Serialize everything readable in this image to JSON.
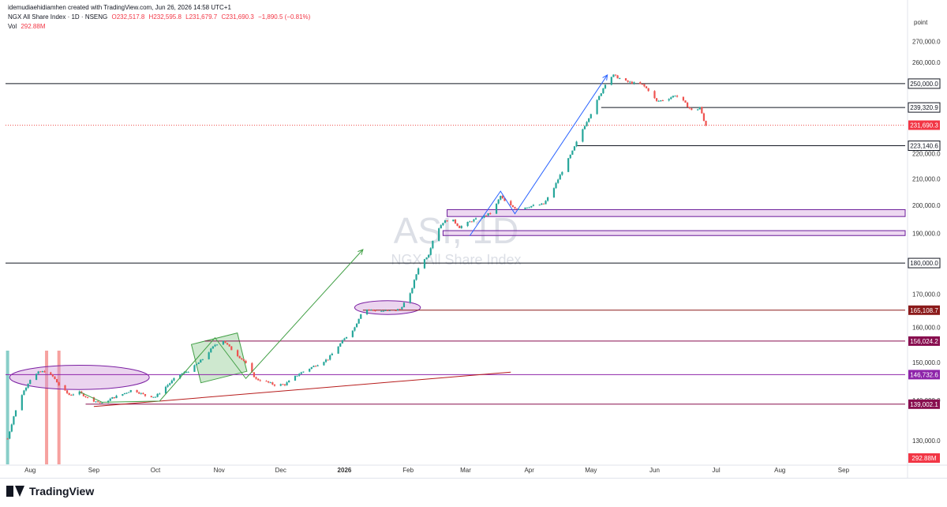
{
  "header": {
    "credit": "idemudiaehidiamhen created with TradingView.com, Jun 26, 2026 14:58 UTC+1",
    "symbol": "NGX All Share Index · 1D · NSENG",
    "open": "O232,517.8",
    "high": "H232,595.8",
    "low": "L231,679.7",
    "close": "C231,690.3",
    "change": "−1,890.5 (−0.81%)",
    "vol_label": "Vol",
    "vol_value": "292.88M"
  },
  "watermark": {
    "ticker": "ASI, 1D",
    "name": "NGX All Share Index"
  },
  "axis_unit": "point",
  "footer": {
    "brand": "TradingView"
  },
  "colors": {
    "up": "#26a69a",
    "down": "#ef5350",
    "trend_arrow_green": "#43a047",
    "trend_arrow_blue": "#2962ff",
    "support": "#b71c1c",
    "purple": "#7b1fa2"
  },
  "chart_data": {
    "type": "candlestick",
    "x_ticks": [
      "Aug",
      "Sep",
      "Oct",
      "Nov",
      "Dec",
      "2026",
      "Feb",
      "Mar",
      "Apr",
      "May",
      "Jun",
      "Jul",
      "Aug",
      "Sep"
    ],
    "y_ticks": [
      "270,000.0",
      "260,000.0",
      "250,000.0",
      "220,000.0",
      "210,000.0",
      "200,000.0",
      "190,000.0",
      "180,000.0",
      "170,000.0",
      "160,000.0",
      "150,000.0",
      "140,000.0",
      "130,000.0"
    ],
    "ylim": [
      124500,
      275000
    ],
    "scale": "log",
    "x_range": [
      "2025-07-20",
      "2026-10-01"
    ],
    "last_price": {
      "value": 231690.3,
      "label": "231,690.3"
    },
    "volume_label": "292.88M",
    "price_path": [
      [
        "2025-07-21",
        130500
      ],
      [
        "2025-07-24",
        136000
      ],
      [
        "2025-07-28",
        141500
      ],
      [
        "2025-08-01",
        145500
      ],
      [
        "2025-08-05",
        147300
      ],
      [
        "2025-08-08",
        147600
      ],
      [
        "2025-08-12",
        146200
      ],
      [
        "2025-08-16",
        143200
      ],
      [
        "2025-08-20",
        141400
      ],
      [
        "2025-08-25",
        142000
      ],
      [
        "2025-08-30",
        140300
      ],
      [
        "2025-09-05",
        139200
      ],
      [
        "2025-09-10",
        140600
      ],
      [
        "2025-09-15",
        141600
      ],
      [
        "2025-09-20",
        142800
      ],
      [
        "2025-09-26",
        141200
      ],
      [
        "2025-10-01",
        140900
      ],
      [
        "2025-10-06",
        143500
      ],
      [
        "2025-10-12",
        146500
      ],
      [
        "2025-10-18",
        148000
      ],
      [
        "2025-10-24",
        151000
      ],
      [
        "2025-10-30",
        155000
      ],
      [
        "2025-11-03",
        156200
      ],
      [
        "2025-11-08",
        153000
      ],
      [
        "2025-11-13",
        150500
      ],
      [
        "2025-11-16",
        147900
      ],
      [
        "2025-11-19",
        145500
      ],
      [
        "2025-11-23",
        145000
      ],
      [
        "2025-11-28",
        144000
      ],
      [
        "2025-12-03",
        144100
      ],
      [
        "2025-12-10",
        147000
      ],
      [
        "2025-12-17",
        149000
      ],
      [
        "2025-12-24",
        151000
      ],
      [
        "2025-12-31",
        156000
      ],
      [
        "2026-01-06",
        160000
      ],
      [
        "2026-01-10",
        165500
      ],
      [
        "2026-01-17",
        164900
      ],
      [
        "2026-01-24",
        164900
      ],
      [
        "2026-01-28",
        165400
      ],
      [
        "2026-02-02",
        170000
      ],
      [
        "2026-02-06",
        178500
      ],
      [
        "2026-02-11",
        183000
      ],
      [
        "2026-02-14",
        190000
      ],
      [
        "2026-02-18",
        194000
      ],
      [
        "2026-02-22",
        195300
      ],
      [
        "2026-02-26",
        192200
      ],
      [
        "2026-03-04",
        194500
      ],
      [
        "2026-03-08",
        195500
      ],
      [
        "2026-03-14",
        197500
      ],
      [
        "2026-03-18",
        203500
      ],
      [
        "2026-03-21",
        200500
      ],
      [
        "2026-03-26",
        198800
      ],
      [
        "2026-04-02",
        199800
      ],
      [
        "2026-04-08",
        200500
      ],
      [
        "2026-04-12",
        205000
      ],
      [
        "2026-04-17",
        213000
      ],
      [
        "2026-04-22",
        220800
      ],
      [
        "2026-04-27",
        230000
      ],
      [
        "2026-05-02",
        238500
      ],
      [
        "2026-05-06",
        246000
      ],
      [
        "2026-05-09",
        252000
      ],
      [
        "2026-05-12",
        253800
      ],
      [
        "2026-05-18",
        251000
      ],
      [
        "2026-05-22",
        250200
      ],
      [
        "2026-05-26",
        249500
      ],
      [
        "2026-05-29",
        247000
      ],
      [
        "2026-06-02",
        242000
      ],
      [
        "2026-06-07",
        243000
      ],
      [
        "2026-06-11",
        244800
      ],
      [
        "2026-06-15",
        242000
      ],
      [
        "2026-06-20",
        237000
      ],
      [
        "2026-06-23",
        239500
      ],
      [
        "2026-06-25",
        233500
      ],
      [
        "2026-06-26",
        231690
      ]
    ],
    "horizontal_levels": [
      {
        "value": 250000,
        "label": "250,000.0",
        "start": "2025-07-20",
        "color": "#131722"
      },
      {
        "value": 239320.9,
        "label": "239,320.9",
        "start": "2026-05-06",
        "color": "#131722"
      },
      {
        "value": 223140.6,
        "label": "223,140.6",
        "start": "2026-04-24",
        "color": "#131722"
      },
      {
        "value": 180000,
        "label": "180,000.0",
        "start": "2025-07-20",
        "color": "#131722"
      },
      {
        "value": 165108.7,
        "label": "165,108.7",
        "start": "2026-01-10",
        "color": "#8b1a1a"
      },
      {
        "value": 156024.2,
        "label": "156,024.2",
        "start": "2025-10-25",
        "color": "#880e4f"
      },
      {
        "value": 146732.6,
        "label": "146,732.6",
        "start": "2025-07-20",
        "color": "#8e24aa"
      },
      {
        "value": 139002.1,
        "label": "139,002.1",
        "start": "2025-08-28",
        "color": "#880e4f"
      }
    ],
    "zones": [
      {
        "from": 196000,
        "to": 198500,
        "start": "2026-02-20"
      },
      {
        "from": 189300,
        "to": 191000,
        "start": "2026-02-18"
      }
    ],
    "ellipses": [
      {
        "center": [
          "2025-08-25",
          146000
        ],
        "rx_days": 34,
        "ry": [
          143000,
          149500
        ]
      },
      {
        "center": [
          "2026-01-22",
          165900
        ],
        "rx_days": 16,
        "ry": [
          164000,
          168200
        ]
      }
    ],
    "trendlines": [
      {
        "from": [
          "2025-09-01",
          138400
        ],
        "to": [
          "2026-03-23",
          147400
        ],
        "color": "#b71c1c"
      }
    ],
    "arrows": [
      {
        "points": [
          [
            "2025-08-25",
            142200
          ],
          [
            "2025-09-05",
            139500
          ],
          [
            "2025-10-03",
            139800
          ],
          [
            "2025-10-30",
            157000
          ],
          [
            "2025-11-14",
            145700
          ],
          [
            "2026-01-10",
            184500
          ]
        ],
        "color": "#43a047"
      },
      {
        "points": [
          [
            "2026-03-03",
            189200
          ],
          [
            "2026-03-18",
            205300
          ],
          [
            "2026-03-25",
            197000
          ],
          [
            "2026-05-09",
            254000
          ]
        ],
        "color": "#2962ff"
      }
    ],
    "vertical_bands": [
      {
        "date": "2025-07-21",
        "color": "#26a69a"
      },
      {
        "date": "2025-08-09",
        "color": "#ef5350"
      },
      {
        "date": "2025-08-15",
        "color": "#ef5350"
      }
    ]
  }
}
